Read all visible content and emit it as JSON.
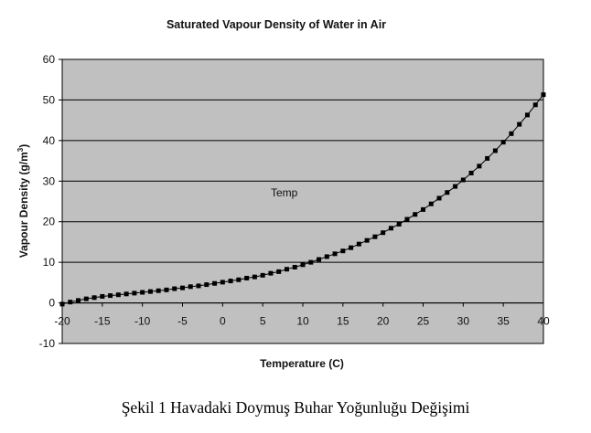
{
  "chart_data": {
    "type": "line",
    "title": "Saturated Vapour Density of Water in Air",
    "xlabel": "Temperature (C)",
    "ylabel_main": "Vapour Density (g/m",
    "ylabel_sup": "3",
    "ylabel_close": ")",
    "annotation": "Temp",
    "xlim": [
      -20,
      40
    ],
    "ylim": [
      -10,
      60
    ],
    "xticks": [
      -20,
      -15,
      -10,
      -5,
      0,
      5,
      10,
      15,
      20,
      25,
      30,
      35,
      40
    ],
    "yticks": [
      -10,
      0,
      10,
      20,
      30,
      40,
      50,
      60
    ],
    "grid": "horizontal",
    "plot_background": "#c0c0c0",
    "line_color": "#000000",
    "series": [
      {
        "marker": "square",
        "x": [
          -20,
          -19,
          -18,
          -17,
          -16,
          -15,
          -14,
          -13,
          -12,
          -11,
          -10,
          -9,
          -8,
          -7,
          -6,
          -5,
          -4,
          -3,
          -2,
          -1,
          0,
          1,
          2,
          3,
          4,
          5,
          6,
          7,
          8,
          9,
          10,
          11,
          12,
          13,
          14,
          15,
          16,
          17,
          18,
          19,
          20,
          21,
          22,
          23,
          24,
          25,
          26,
          27,
          28,
          29,
          30,
          31,
          32,
          33,
          34,
          35,
          36,
          37,
          38,
          39,
          40
        ],
        "y": [
          -0.3,
          0.2,
          0.6,
          1.0,
          1.3,
          1.6,
          1.8,
          2.0,
          2.2,
          2.4,
          2.6,
          2.8,
          3.0,
          3.2,
          3.5,
          3.7,
          4.0,
          4.2,
          4.5,
          4.8,
          5.1,
          5.4,
          5.7,
          6.1,
          6.4,
          6.8,
          7.3,
          7.7,
          8.3,
          8.8,
          9.4,
          10.0,
          10.7,
          11.4,
          12.1,
          12.8,
          13.6,
          14.5,
          15.4,
          16.3,
          17.3,
          18.4,
          19.4,
          20.6,
          21.8,
          23.0,
          24.4,
          25.8,
          27.2,
          28.7,
          30.3,
          32.0,
          33.7,
          35.6,
          37.5,
          39.6,
          41.7,
          44.0,
          46.3,
          48.8,
          51.3
        ]
      }
    ]
  },
  "caption": "Şekil 1 Havadaki Doymuş Buhar Yoğunluğu Değişimi"
}
